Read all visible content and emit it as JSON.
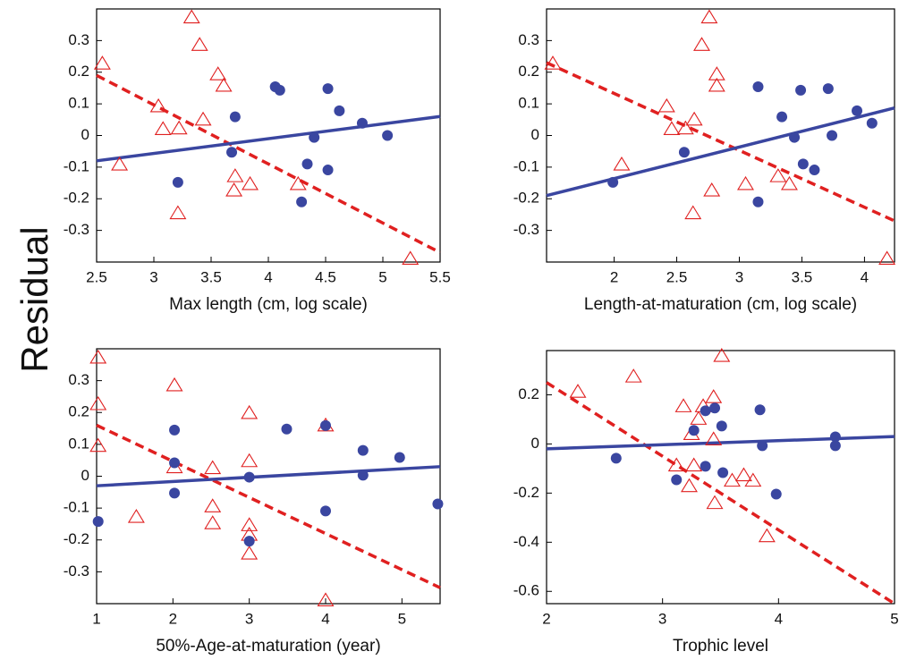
{
  "ylabel": "Residual",
  "chart_data": [
    {
      "type": "scatter",
      "xlabel": "Max length (cm, log scale)",
      "xlim": [
        2.5,
        5.5
      ],
      "ylim": [
        -0.4,
        0.4
      ],
      "xticks": [
        2.5,
        3,
        3.5,
        4,
        4.5,
        5,
        5.5
      ],
      "yticks": [
        -0.3,
        -0.2,
        -0.1,
        0,
        0.1,
        0.2,
        0.3
      ],
      "series": [
        {
          "marker": "triangle",
          "color": "#e02020",
          "x": [
            2.55,
            2.7,
            3.04,
            3.08,
            3.22,
            3.33,
            3.4,
            3.43,
            3.56,
            3.61,
            3.71,
            3.7,
            3.84,
            3.21,
            4.26,
            5.24
          ],
          "values": [
            0.227,
            -0.092,
            0.092,
            0.02,
            0.022,
            0.373,
            0.286,
            0.05,
            0.193,
            0.157,
            -0.129,
            -0.174,
            -0.154,
            -0.246,
            -0.154,
            -0.39
          ]
        },
        {
          "marker": "circle",
          "color": "#3a46a0",
          "x": [
            3.21,
            3.71,
            3.68,
            4.06,
            4.1,
            4.4,
            4.34,
            4.29,
            4.52,
            4.62,
            4.52,
            4.82,
            5.04
          ],
          "values": [
            -0.148,
            0.059,
            -0.053,
            0.154,
            0.143,
            -0.006,
            -0.09,
            -0.21,
            0.148,
            0.078,
            -0.109,
            0.039,
            0
          ]
        }
      ],
      "fits": [
        {
          "style": "dashed",
          "color": "#e02020",
          "x": [
            2.5,
            5.5
          ],
          "values": [
            0.19,
            -0.37
          ]
        },
        {
          "style": "solid",
          "color": "#3a46a0",
          "x": [
            2.5,
            5.5
          ],
          "values": [
            -0.08,
            0.06
          ]
        }
      ]
    },
    {
      "type": "scatter",
      "xlabel": "Length-at-maturation (cm, log scale)",
      "xlim": [
        1.46,
        4.24
      ],
      "ylim": [
        -0.4,
        0.4
      ],
      "xticks": [
        2,
        2.5,
        3,
        3.5,
        4
      ],
      "yticks": [
        -0.3,
        -0.2,
        -0.1,
        0,
        0.1,
        0.2,
        0.3
      ],
      "series": [
        {
          "marker": "triangle",
          "color": "#e02020",
          "x": [
            1.51,
            2.06,
            2.42,
            2.46,
            2.57,
            2.64,
            2.76,
            2.7,
            2.82,
            2.82,
            2.78,
            2.63,
            3.05,
            3.31,
            3.4,
            4.18
          ],
          "values": [
            0.227,
            -0.092,
            0.092,
            0.02,
            0.022,
            0.05,
            0.373,
            0.286,
            0.193,
            0.157,
            -0.174,
            -0.246,
            -0.154,
            -0.129,
            -0.154,
            -0.39
          ]
        },
        {
          "marker": "circle",
          "color": "#3a46a0",
          "x": [
            1.99,
            2.56,
            3.15,
            3.15,
            3.34,
            3.44,
            3.49,
            3.51,
            3.6,
            3.71,
            3.74,
            3.94,
            4.06
          ],
          "values": [
            -0.148,
            -0.053,
            0.154,
            -0.21,
            0.059,
            -0.006,
            0.143,
            -0.09,
            -0.109,
            0.148,
            0,
            0.078,
            0.039
          ]
        }
      ],
      "fits": [
        {
          "style": "dashed",
          "color": "#e02020",
          "x": [
            1.46,
            4.24
          ],
          "values": [
            0.23,
            -0.27
          ]
        },
        {
          "style": "solid",
          "color": "#3a46a0",
          "x": [
            1.46,
            4.24
          ],
          "values": [
            -0.19,
            0.087
          ]
        }
      ]
    },
    {
      "type": "scatter",
      "xlabel": "50%-Age-at-maturation (year)",
      "xlim": [
        1,
        5.5
      ],
      "ylim": [
        -0.4,
        0.4
      ],
      "xticks": [
        1,
        2,
        3,
        4,
        5
      ],
      "yticks": [
        -0.3,
        -0.2,
        -0.1,
        0,
        0.1,
        0.2,
        0.3
      ],
      "series": [
        {
          "marker": "triangle",
          "color": "#e02020",
          "x": [
            1.02,
            1.02,
            1.02,
            1.52,
            2.02,
            2.02,
            2.52,
            2.52,
            2.52,
            3,
            3,
            3,
            3,
            3,
            4,
            4
          ],
          "values": [
            0.372,
            0.226,
            0.095,
            -0.128,
            0.285,
            0.028,
            0.025,
            -0.095,
            -0.148,
            0.198,
            0.047,
            -0.154,
            -0.184,
            -0.243,
            0.159,
            -0.39
          ]
        },
        {
          "marker": "circle",
          "color": "#3a46a0",
          "x": [
            1.02,
            2.02,
            2.02,
            2.02,
            3,
            3,
            3.49,
            4,
            4,
            4.49,
            4.49,
            4.97,
            5.47
          ],
          "values": [
            -0.142,
            0.145,
            0.042,
            -0.053,
            -0.003,
            -0.204,
            0.148,
            0.159,
            -0.109,
            0.081,
            0.003,
            0.059,
            -0.087
          ]
        }
      ],
      "fits": [
        {
          "style": "dashed",
          "color": "#e02020",
          "x": [
            1,
            5.5
          ],
          "values": [
            0.16,
            -0.35
          ]
        },
        {
          "style": "solid",
          "color": "#3a46a0",
          "x": [
            1,
            5.5
          ],
          "values": [
            -0.03,
            0.03
          ]
        }
      ]
    },
    {
      "type": "scatter",
      "xlabel": "Trophic level",
      "xlim": [
        2,
        5
      ],
      "ylim": [
        -0.65,
        0.38
      ],
      "xticks": [
        2,
        3,
        4,
        5
      ],
      "yticks": [
        -0.6,
        -0.4,
        -0.2,
        0,
        0.2
      ],
      "series": [
        {
          "marker": "triangle",
          "color": "#e02020",
          "x": [
            2.27,
            2.75,
            3.12,
            3.18,
            3.23,
            3.25,
            3.31,
            3.35,
            3.44,
            3.44,
            3.45,
            3.51,
            3.27,
            3.6,
            3.7,
            3.78,
            3.9
          ],
          "values": [
            0.212,
            0.274,
            -0.088,
            0.153,
            -0.172,
            0.04,
            0.102,
            0.153,
            0.018,
            0.19,
            -0.241,
            0.358,
            -0.088,
            -0.15,
            -0.128,
            -0.15,
            -0.376
          ]
        },
        {
          "marker": "circle",
          "color": "#3a46a0",
          "x": [
            2.6,
            3.12,
            3.27,
            3.37,
            3.37,
            3.45,
            3.51,
            3.52,
            3.84,
            3.86,
            3.98,
            4.49,
            4.49
          ],
          "values": [
            -0.058,
            -0.146,
            0.055,
            0.135,
            -0.091,
            0.146,
            0.073,
            -0.117,
            0.139,
            -0.007,
            -0.204,
            0.029,
            -0.007
          ]
        }
      ],
      "fits": [
        {
          "style": "dashed",
          "color": "#e02020",
          "x": [
            2,
            5
          ],
          "values": [
            0.25,
            -0.65
          ]
        },
        {
          "style": "solid",
          "color": "#3a46a0",
          "x": [
            2,
            5
          ],
          "values": [
            -0.02,
            0.03
          ]
        }
      ]
    }
  ]
}
